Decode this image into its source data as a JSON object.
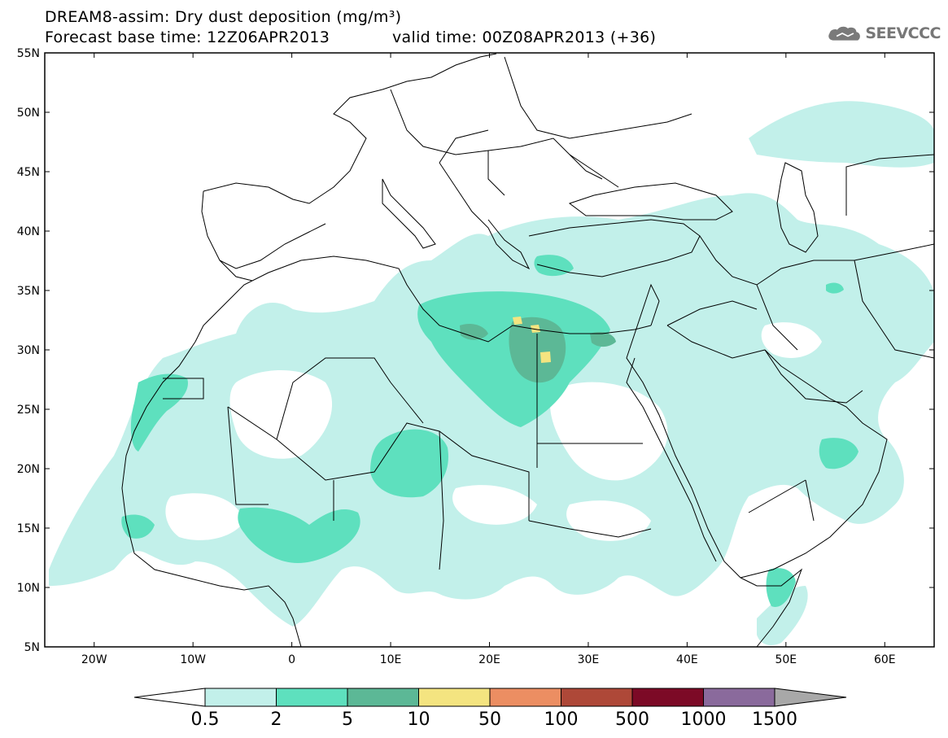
{
  "title": {
    "line1": "DREAM8-assim: Dry dust deposition (mg/m³)",
    "line2": "Forecast base time: 12Z06APR2013",
    "valid": "valid time: 00Z08APR2013 (+36)"
  },
  "logo": {
    "text": "SEEVCCC",
    "icon": "cloud-icon"
  },
  "axes": {
    "lat_labels": [
      "55N",
      "50N",
      "45N",
      "40N",
      "35N",
      "30N",
      "25N",
      "20N",
      "15N",
      "10N",
      "5N"
    ],
    "lon_labels": [
      "20W",
      "10W",
      "0",
      "10E",
      "20E",
      "30E",
      "40E",
      "50E",
      "60E"
    ],
    "lon_range": [
      -25,
      65
    ],
    "lat_range": [
      5,
      55
    ]
  },
  "colorbar": {
    "labels": [
      "0.5",
      "2",
      "5",
      "10",
      "50",
      "100",
      "500",
      "1000",
      "1500"
    ],
    "colors": [
      "#c2f0ea",
      "#5ee0be",
      "#5cb896",
      "#f4e480",
      "#ec8e62",
      "#ae4838",
      "#7c0a26",
      "#8a6a9c"
    ],
    "under_color": "#ffffff",
    "over_color": "#a8a8a8"
  },
  "map_colors": {
    "land_outline": "#000000",
    "background": "#ffffff"
  }
}
